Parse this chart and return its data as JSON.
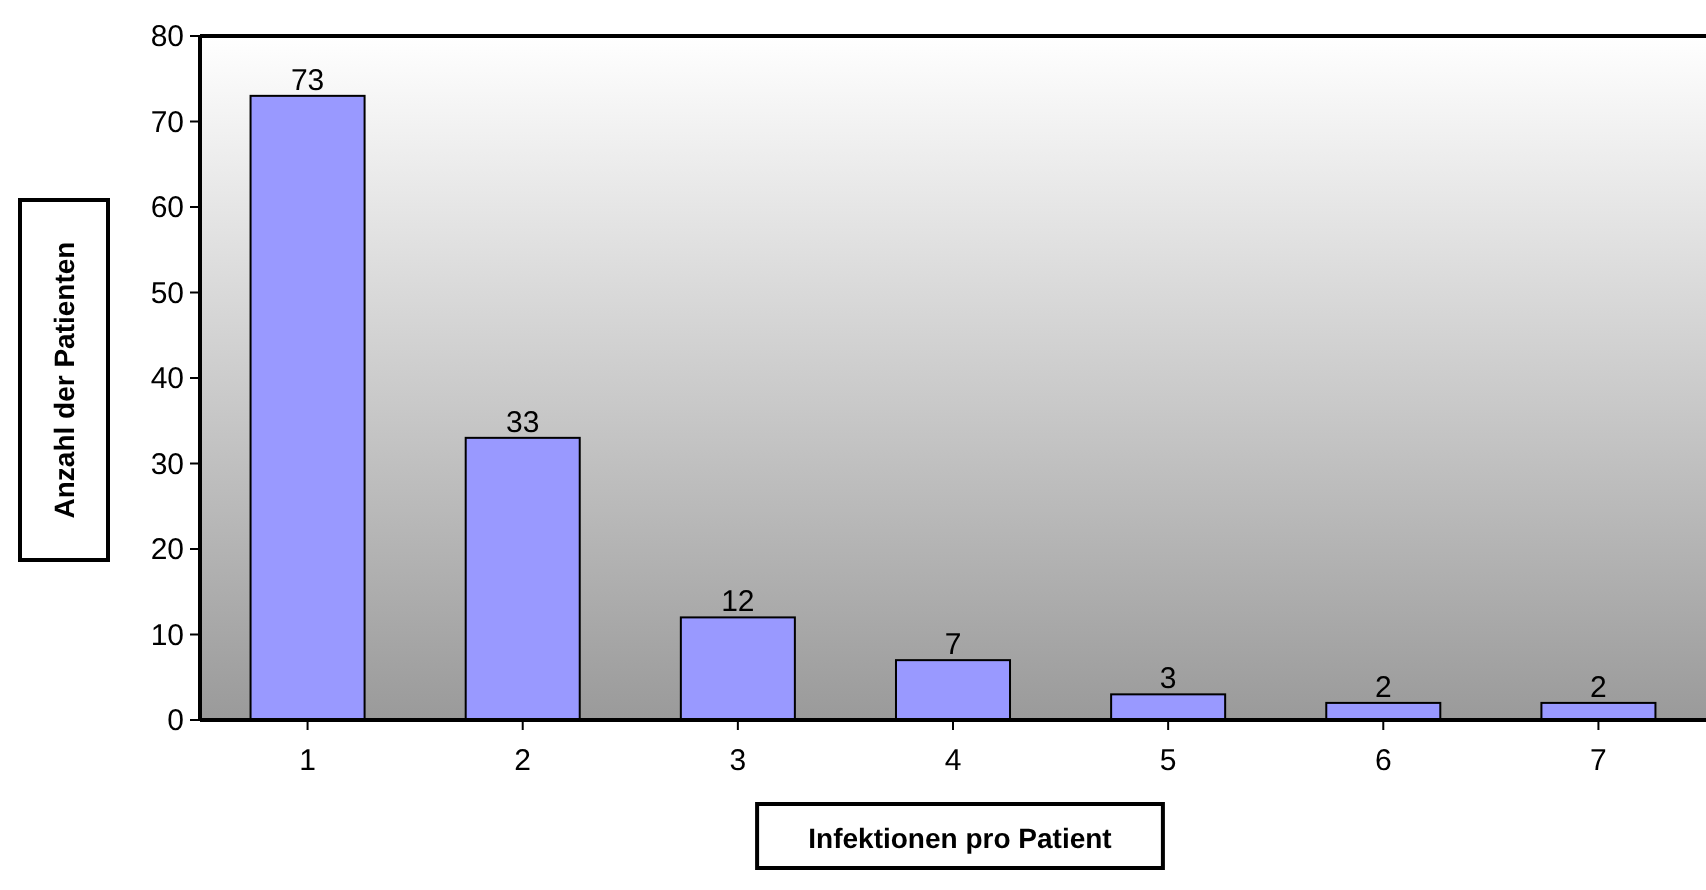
{
  "chart_data": {
    "type": "bar",
    "xlabel": "Infektionen pro Patient",
    "ylabel": "Anzahl der Patienten",
    "categories": [
      "1",
      "2",
      "3",
      "4",
      "5",
      "6",
      "7"
    ],
    "values": [
      73,
      33,
      12,
      7,
      3,
      2,
      2
    ],
    "color": "#9999ff",
    "ylim": [
      0,
      80
    ],
    "yticks": [
      0,
      10,
      20,
      30,
      40,
      50,
      60,
      70,
      80
    ],
    "data_labels": true,
    "grid": false
  }
}
